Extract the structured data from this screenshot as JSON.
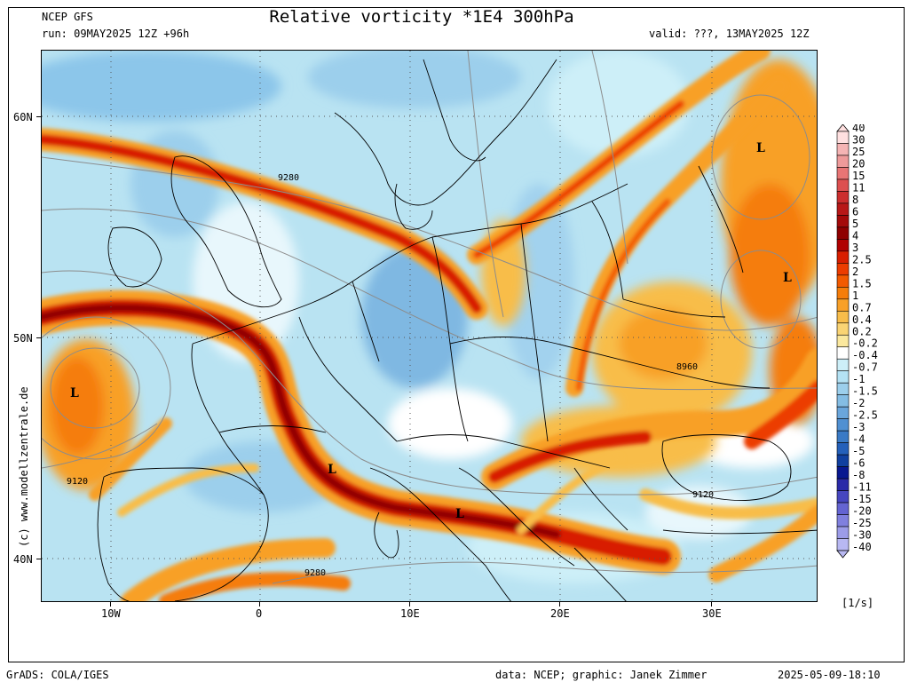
{
  "header": {
    "model": "NCEP GFS",
    "run": "run: 09MAY2025 12Z +96h",
    "title": "Relative vorticity *1E4 300hPa",
    "valid": "valid: ???, 13MAY2025 12Z"
  },
  "axes": {
    "lat_labels": [
      "60N",
      "50N",
      "40N"
    ],
    "lon_labels": [
      "10W",
      "0",
      "10E",
      "20E",
      "30E"
    ]
  },
  "map": {
    "lows": [
      "L",
      "L",
      "L",
      "L",
      "L"
    ],
    "contour_labels": [
      "9280",
      "8960",
      "9120",
      "9120",
      "9280"
    ]
  },
  "legend": {
    "values": [
      "40",
      "30",
      "25",
      "20",
      "15",
      "11",
      "8",
      "6",
      "5",
      "4",
      "3",
      "2.5",
      "2",
      "1.5",
      "1",
      "0.7",
      "0.4",
      "0.2",
      "-0.2",
      "-0.4",
      "-0.7",
      "-1",
      "-1.5",
      "-2",
      "-2.5",
      "-3",
      "-4",
      "-5",
      "-6",
      "-8",
      "-11",
      "-15",
      "-20",
      "-25",
      "-30",
      "-40"
    ],
    "colors": [
      "#ffe0e0",
      "#f5b4b4",
      "#ee9a9a",
      "#e87575",
      "#dd5050",
      "#cc2e2e",
      "#b81818",
      "#a40a0a",
      "#8f0000",
      "#b00000",
      "#d81e00",
      "#ec3c00",
      "#f25a00",
      "#f57d0a",
      "#f8a028",
      "#f8bd4a",
      "#fad474",
      "#fbe89e",
      "#ffffff",
      "#cdeff8",
      "#b4e2f4",
      "#9ccfec",
      "#84bde4",
      "#6aa6dc",
      "#5090d2",
      "#3a7ac6",
      "#2460ba",
      "#1040a0",
      "#081890",
      "#2a2aa8",
      "#4646c0",
      "#6464d2",
      "#8080de",
      "#9c9ce8",
      "#b8b8f2"
    ],
    "units": "[1/s]"
  },
  "footer": {
    "grads": "GrADS: COLA/IGES",
    "credit": "data: NCEP; graphic: Janek Zimmer",
    "timestamp": "2025-05-09-18:10"
  },
  "copyright": "(c) www.modellzentrale.de"
}
